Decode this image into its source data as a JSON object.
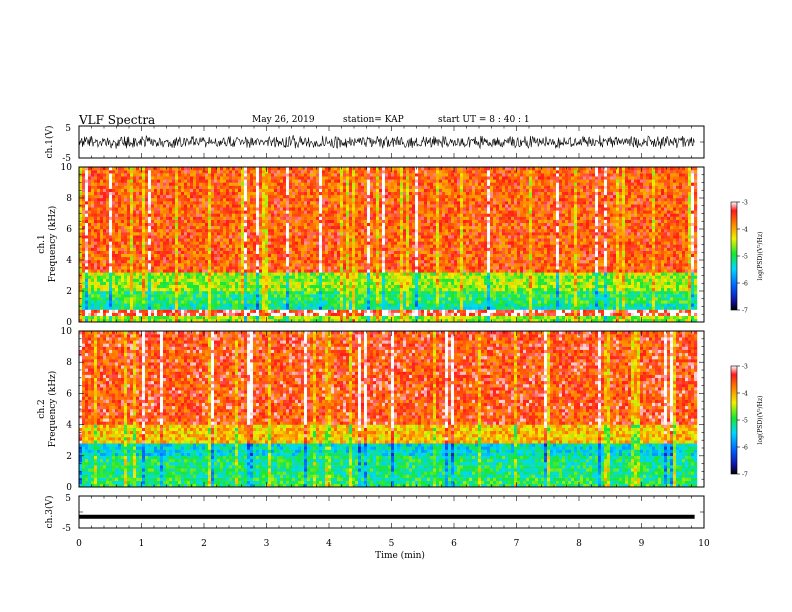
{
  "header": {
    "title": "VLF Spectra",
    "date": "May 26, 2019",
    "station": "station= KAP",
    "start": "start  UT =   8 : 40 : 1"
  },
  "chart_data": [
    {
      "type": "line",
      "panel": "ch1-waveform",
      "ylabel": "ch.1(V)",
      "ylim": [
        -5,
        5
      ],
      "yticks": [
        "5",
        "-5"
      ],
      "xlim": [
        0,
        10
      ],
      "description_free_series": {
        "x_range": [
          0,
          9.85
        ],
        "amplitude_range": [
          -2.2,
          2.2
        ]
      }
    },
    {
      "type": "heatmap",
      "panel": "ch1-spectrogram",
      "ylabel": "Frequency (kHz)",
      "channel_label": "ch.1",
      "ylim": [
        0,
        10
      ],
      "yticks": [
        "0",
        "2",
        "4",
        "6",
        "8",
        "10"
      ],
      "xlim": [
        0,
        10
      ],
      "x_data_extent": [
        0,
        9.85
      ],
      "colorbar": {
        "label": "log(PSD)(V²/Hz)",
        "range": [
          -7,
          -3
        ],
        "ticks": [
          "-3",
          "-4",
          "-5",
          "-6",
          "-7"
        ]
      },
      "bands": [
        {
          "f": [
            0.0,
            0.4
          ],
          "level": -4.6
        },
        {
          "f": [
            0.4,
            0.8
          ],
          "level": -3.2
        },
        {
          "f": [
            0.8,
            1.2
          ],
          "level": -5.2
        },
        {
          "f": [
            1.2,
            2.0
          ],
          "level": -5.0
        },
        {
          "f": [
            2.0,
            3.2
          ],
          "level": -4.6
        },
        {
          "f": [
            3.2,
            10.0
          ],
          "level": -3.6
        }
      ]
    },
    {
      "type": "heatmap",
      "panel": "ch2-spectrogram",
      "ylabel": "Frequency (kHz)",
      "channel_label": "ch.2",
      "ylim": [
        0,
        10
      ],
      "yticks": [
        "0",
        "2",
        "4",
        "6",
        "8",
        "10"
      ],
      "xlim": [
        0,
        10
      ],
      "x_data_extent": [
        0,
        9.85
      ],
      "colorbar": {
        "label": "log(PSD)(V²/Hz)",
        "range": [
          -7,
          -3
        ],
        "ticks": [
          "-3",
          "-4",
          "-5",
          "-6",
          "-7"
        ]
      },
      "bands": [
        {
          "f": [
            0.0,
            0.6
          ],
          "level": -5.0
        },
        {
          "f": [
            0.6,
            2.0
          ],
          "level": -5.1
        },
        {
          "f": [
            2.0,
            2.8
          ],
          "level": -5.4
        },
        {
          "f": [
            2.8,
            4.0
          ],
          "level": -4.1
        },
        {
          "f": [
            4.0,
            10.0
          ],
          "level": -3.5
        }
      ]
    },
    {
      "type": "line",
      "panel": "ch3-waveform",
      "ylabel": "ch.3(V)",
      "ylim": [
        -5,
        5
      ],
      "yticks": [
        "5",
        "-5"
      ],
      "xlim": [
        0,
        10
      ],
      "xlabel": "Time (min)",
      "xticks": [
        "0",
        "1",
        "2",
        "3",
        "4",
        "5",
        "6",
        "7",
        "8",
        "9",
        "10"
      ],
      "constant_value": -1.5,
      "x_data_extent": [
        0,
        9.85
      ]
    }
  ]
}
